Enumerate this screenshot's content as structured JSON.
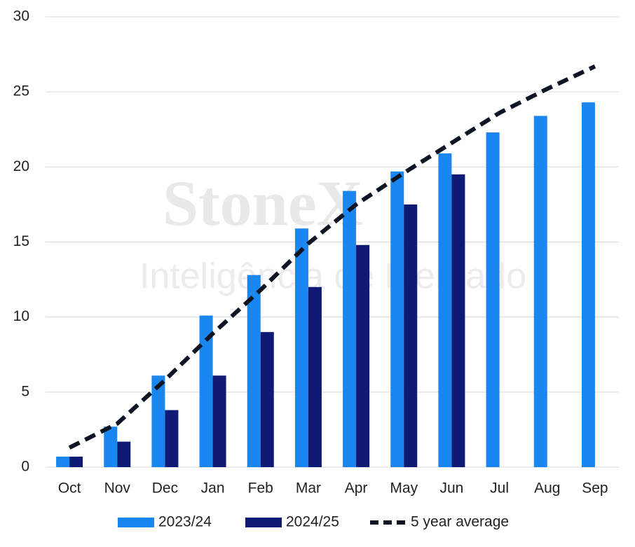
{
  "chart_data": {
    "type": "bar",
    "watermark": [
      "StoneX",
      "Inteligência de Mercado"
    ],
    "categories": [
      "Oct",
      "Nov",
      "Dec",
      "Jan",
      "Feb",
      "Mar",
      "Apr",
      "May",
      "Jun",
      "Jul",
      "Aug",
      "Sep"
    ],
    "series": [
      {
        "name": "2023/24",
        "type": "bar",
        "color": "#1a86f0",
        "values": [
          0.7,
          2.7,
          6.1,
          10.1,
          12.8,
          15.9,
          18.4,
          19.7,
          20.9,
          22.3,
          23.4,
          24.3
        ]
      },
      {
        "name": "2024/25",
        "type": "bar",
        "color": "#0e1a73",
        "values": [
          0.7,
          1.7,
          3.8,
          6.1,
          9.0,
          12.0,
          14.8,
          17.5,
          19.5,
          null,
          null,
          null
        ]
      },
      {
        "name": "5 year average",
        "type": "line",
        "color": "#0d1424",
        "values": [
          1.3,
          2.9,
          5.8,
          8.9,
          11.8,
          14.9,
          17.5,
          19.6,
          21.6,
          23.6,
          25.2,
          26.7
        ]
      }
    ],
    "ylim": [
      0,
      30
    ],
    "yticks": [
      0,
      5,
      10,
      15,
      20,
      25,
      30
    ],
    "grid": true,
    "legend": "bottom"
  }
}
